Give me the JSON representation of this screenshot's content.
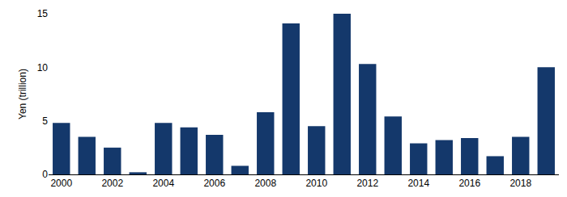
{
  "chart_data": {
    "type": "bar",
    "y_label": "Yen (trillion)",
    "categories": [
      "2000",
      null,
      "2002",
      null,
      "2004",
      null,
      "2006",
      null,
      "2008",
      null,
      "2010",
      null,
      "2012",
      null,
      "2014",
      null,
      "2016",
      null,
      "2018",
      null
    ],
    "values": [
      4.8,
      3.5,
      2.5,
      0.2,
      4.8,
      4.4,
      3.7,
      0.8,
      5.8,
      14.1,
      4.5,
      15.0,
      10.3,
      5.4,
      2.9,
      3.2,
      3.4,
      1.7,
      3.5,
      10.0
    ],
    "color": "#14386b",
    "ylim": [
      0,
      15
    ],
    "yticks": [
      0,
      5,
      10,
      15
    ],
    "grid": false
  }
}
